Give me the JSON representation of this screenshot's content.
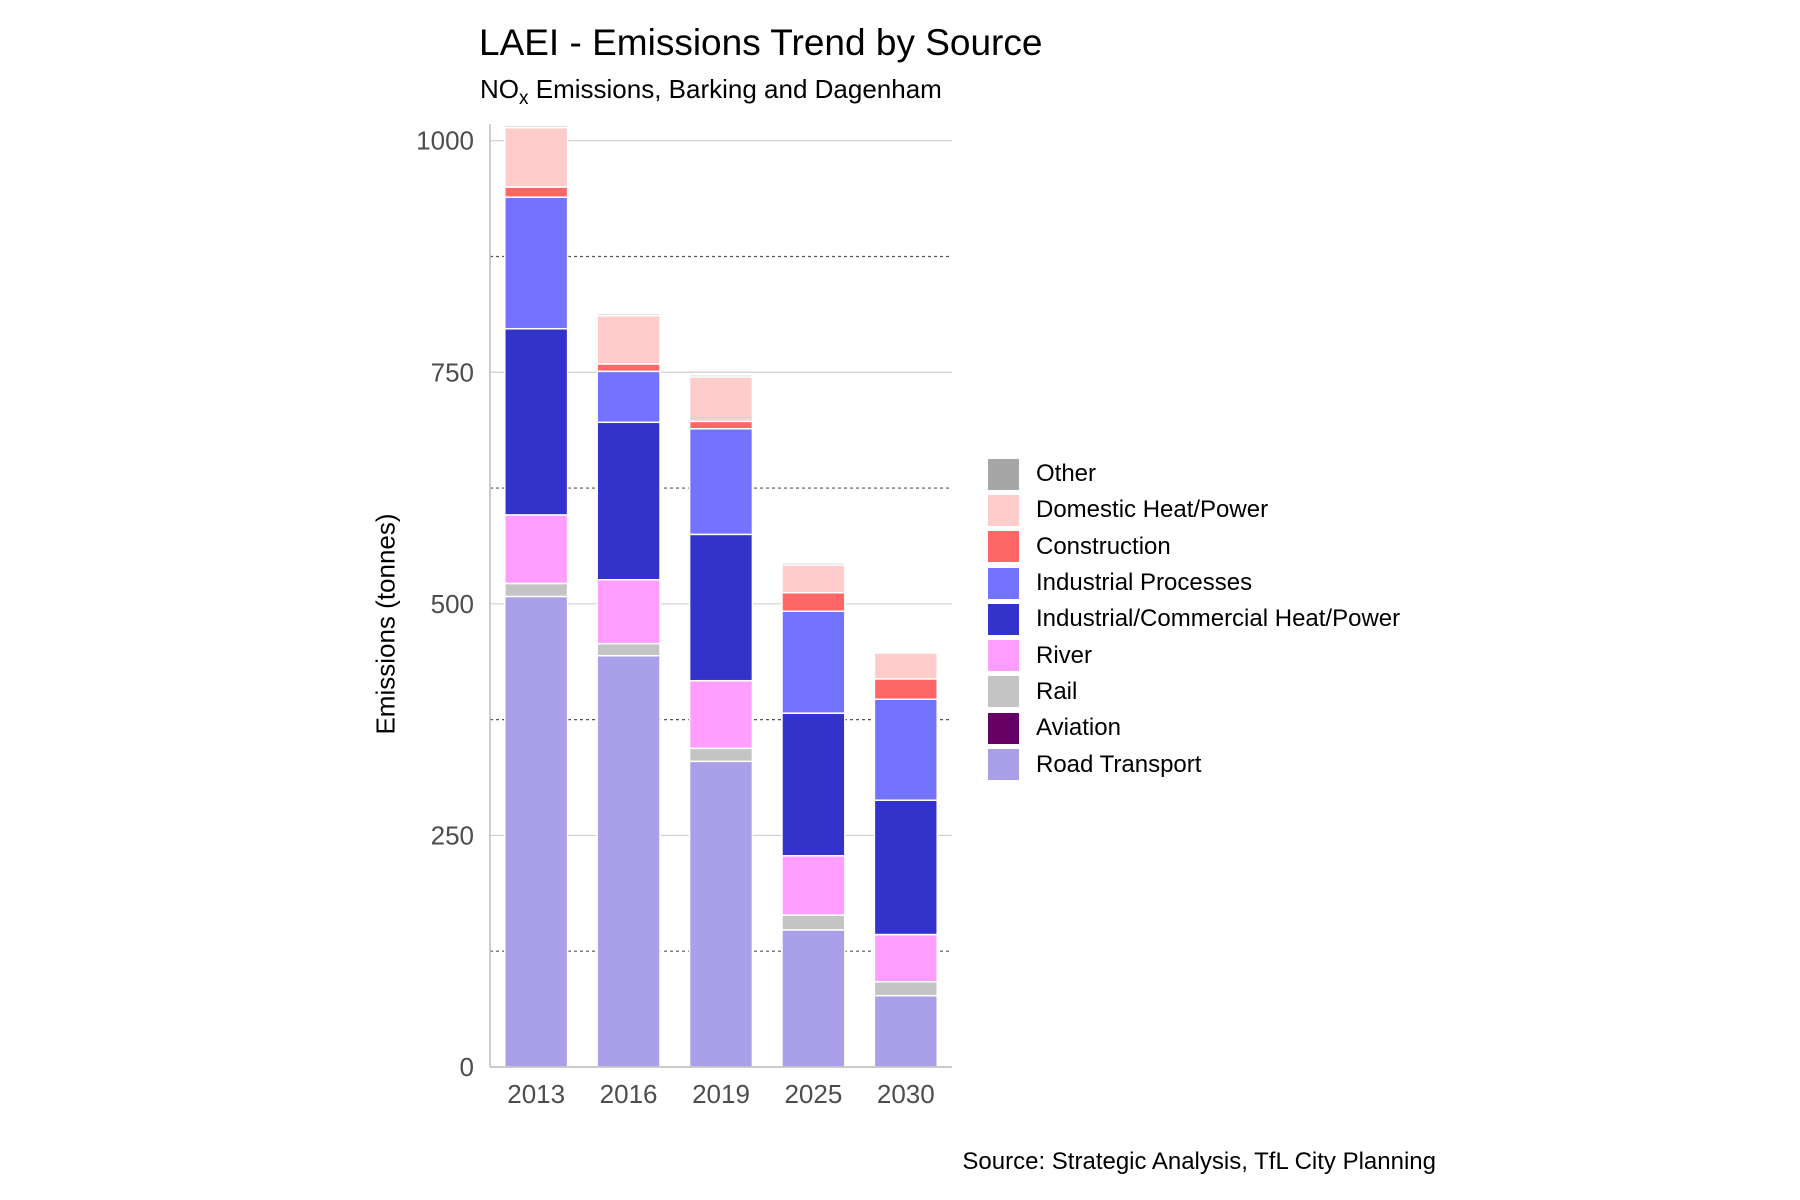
{
  "chart_data": {
    "type": "bar",
    "stacked": true,
    "title": "LAEI - Emissions Trend by Source",
    "subtitle_prefix": "NO",
    "subtitle_sub": "x",
    "subtitle_suffix": " Emissions, Barking and Dagenham",
    "ylabel": "Emissions (tonnes)",
    "xlabel": "",
    "caption": "Source: Strategic Analysis, TfL City Planning",
    "ylim": [
      0,
      1018
    ],
    "yticks": [
      0,
      250,
      500,
      750,
      1000
    ],
    "minor_gridlines": [
      125,
      375,
      625,
      875
    ],
    "grid": true,
    "legend_position": "right",
    "categories": [
      "2013",
      "2016",
      "2019",
      "2025",
      "2030"
    ],
    "series": [
      {
        "name": "Road Transport",
        "color": "#aaa0ea",
        "values": [
          508,
          444,
          330,
          148,
          77
        ]
      },
      {
        "name": "Aviation",
        "color": "#660066",
        "values": [
          0,
          0,
          0,
          0,
          0
        ]
      },
      {
        "name": "Rail",
        "color": "#c4c4c4",
        "values": [
          14,
          13,
          14,
          16,
          15
        ]
      },
      {
        "name": "River",
        "color": "#ff9eff",
        "values": [
          74,
          69,
          73,
          64,
          51
        ]
      },
      {
        "name": "Industrial/Commercial Heat/Power",
        "color": "#3333cc",
        "values": [
          201,
          170,
          158,
          154,
          145
        ]
      },
      {
        "name": "Industrial Processes",
        "color": "#7373ff",
        "values": [
          142,
          55,
          114,
          110,
          109
        ]
      },
      {
        "name": "Construction",
        "color": "#ff6666",
        "values": [
          11,
          8,
          8,
          20,
          22
        ]
      },
      {
        "name": "Domestic Heat/Power",
        "color": "#ffcccc",
        "values": [
          64,
          52,
          48,
          30,
          28
        ]
      },
      {
        "name": "Other",
        "color": "#a6a6a6",
        "values": [
          2,
          2,
          2,
          2,
          0
        ]
      }
    ],
    "legend_order": [
      "Other",
      "Domestic Heat/Power",
      "Construction",
      "Industrial Processes",
      "Industrial/Commercial Heat/Power",
      "River",
      "Rail",
      "Aviation",
      "Road Transport"
    ]
  }
}
